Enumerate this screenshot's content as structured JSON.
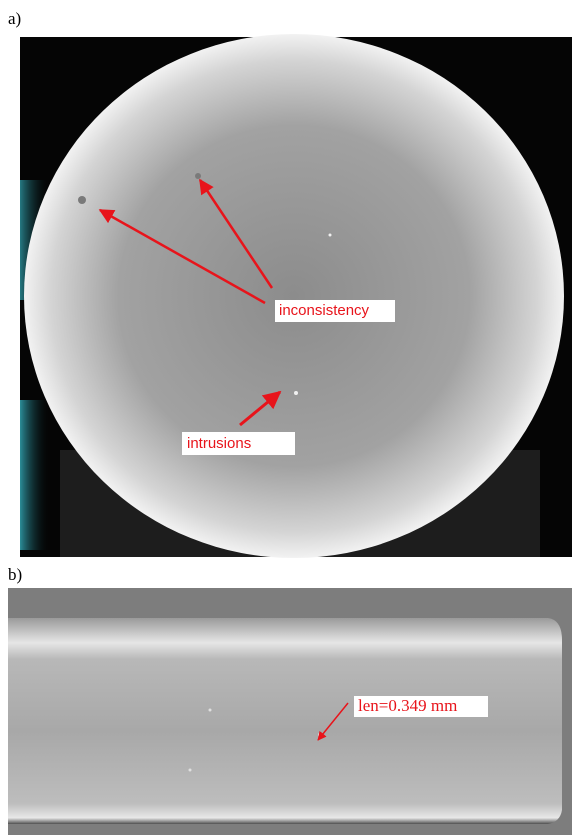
{
  "panels": [
    {
      "label": "a)",
      "annotations": [
        "inconsistency",
        "intrusions"
      ]
    },
    {
      "label": "b)",
      "annotations": [
        "len=0.349 mm"
      ]
    }
  ]
}
